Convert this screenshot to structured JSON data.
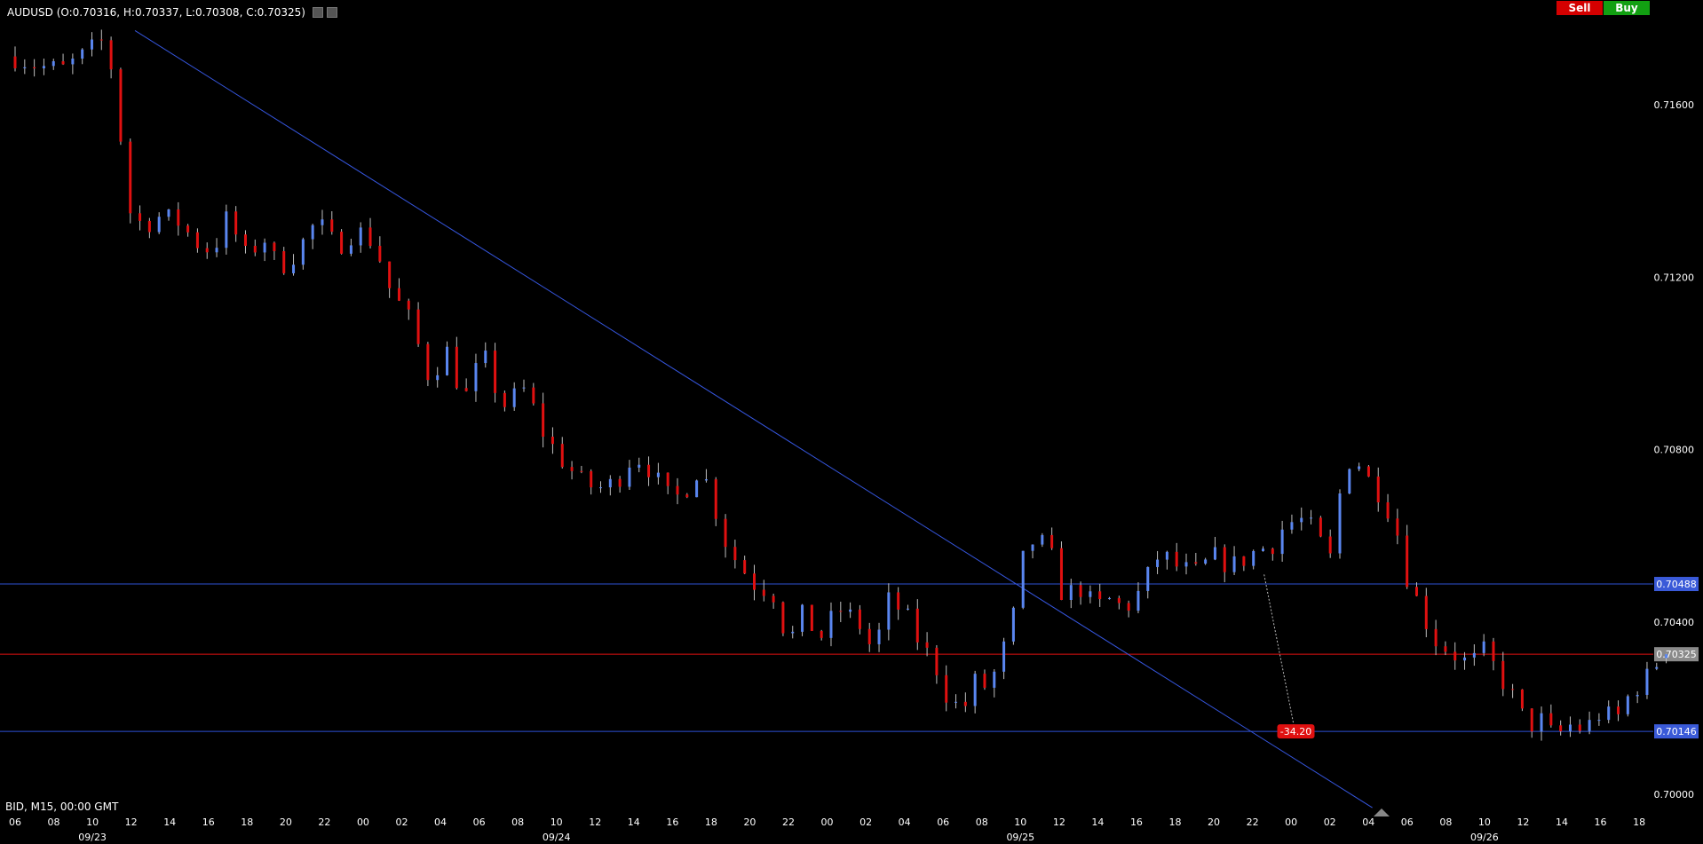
{
  "header": {
    "symbol_ohlc": "AUDUSD (O:0.70316, H:0.70337, L:0.70308, C:0.70325)"
  },
  "buttons": {
    "sell": "Sell",
    "buy": "Buy"
  },
  "footer": {
    "info": "BID, M15, 00:00 GMT"
  },
  "colors": {
    "background": "#000000",
    "up": "#5a86f0",
    "down": "#e01010",
    "hline": "#2e52d6",
    "price": "#e01010",
    "trend": "#3555dc"
  },
  "chart_data": {
    "type": "candlestick",
    "symbol": "AUDUSD",
    "timeframe": "M15",
    "ylim": [
      0.6999,
      0.7176
    ],
    "y_ticks": [
      {
        "value": 0.716,
        "label": "0.71600"
      },
      {
        "value": 0.712,
        "label": "0.71200"
      },
      {
        "value": 0.708,
        "label": "0.70800"
      },
      {
        "value": 0.704,
        "label": "0.70400"
      },
      {
        "value": 0.7,
        "label": "0.70000"
      }
    ],
    "x_ticks": [
      "06",
      "08",
      "10",
      "12",
      "14",
      "16",
      "18",
      "20",
      "22",
      "00",
      "02",
      "04",
      "06",
      "08",
      "10",
      "12",
      "14",
      "16",
      "18",
      "20",
      "22",
      "00",
      "02",
      "04",
      "06",
      "08",
      "10",
      "12",
      "14",
      "16",
      "18",
      "20",
      "22",
      "00",
      "02",
      "04",
      "06",
      "08",
      "10",
      "12",
      "14",
      "16",
      "18"
    ],
    "x_dates": [
      {
        "tick_index": 2,
        "label": "09/23"
      },
      {
        "tick_index": 14,
        "label": "09/24"
      },
      {
        "tick_index": 26,
        "label": "09/25"
      },
      {
        "tick_index": 38,
        "label": "09/26"
      }
    ],
    "horizontal_lines": [
      {
        "price": 0.70488,
        "label": "0.70488",
        "kind": "level"
      },
      {
        "price": 0.70325,
        "label": "0.70325",
        "kind": "current"
      },
      {
        "price": 0.70146,
        "label": "0.70146",
        "kind": "level"
      }
    ],
    "trendline": {
      "from": {
        "tick": 3.1,
        "price": 0.71772
      },
      "to": {
        "tick": 35.1,
        "price": 0.69969
      }
    },
    "annotation": {
      "label": "-34.20",
      "tick": 33.1,
      "price": 0.70146
    },
    "close_path": [
      [
        0.0,
        0.71712
      ],
      [
        0.6,
        0.7169
      ],
      [
        1.2,
        0.7168
      ],
      [
        1.8,
        0.71715
      ],
      [
        2.3,
        0.7175
      ],
      [
        2.6,
        0.7165
      ],
      [
        2.9,
        0.7136
      ],
      [
        3.3,
        0.7132
      ],
      [
        3.7,
        0.7134
      ],
      [
        4.2,
        0.7133
      ],
      [
        4.7,
        0.7128
      ],
      [
        5.1,
        0.7126
      ],
      [
        5.5,
        0.7134
      ],
      [
        6.0,
        0.7124
      ],
      [
        6.4,
        0.713
      ],
      [
        6.8,
        0.7122
      ],
      [
        7.3,
        0.7126
      ],
      [
        7.8,
        0.7133
      ],
      [
        8.3,
        0.7127
      ],
      [
        8.8,
        0.7131
      ],
      [
        9.3,
        0.7128
      ],
      [
        9.7,
        0.7117
      ],
      [
        10.2,
        0.711
      ],
      [
        10.7,
        0.7097
      ],
      [
        11.2,
        0.7103
      ],
      [
        11.6,
        0.7091
      ],
      [
        12.1,
        0.7102
      ],
      [
        12.6,
        0.709
      ],
      [
        13.2,
        0.7094
      ],
      [
        13.7,
        0.7083
      ],
      [
        14.2,
        0.7077
      ],
      [
        14.7,
        0.7072
      ],
      [
        15.1,
        0.7071
      ],
      [
        15.5,
        0.7072
      ],
      [
        16.0,
        0.7079
      ],
      [
        16.5,
        0.7075
      ],
      [
        16.8,
        0.7069
      ],
      [
        17.2,
        0.7069
      ],
      [
        17.7,
        0.7076
      ],
      [
        18.0,
        0.707
      ],
      [
        18.3,
        0.706
      ],
      [
        18.6,
        0.7055
      ],
      [
        19.1,
        0.7049
      ],
      [
        19.6,
        0.7047
      ],
      [
        20.0,
        0.7035
      ],
      [
        20.4,
        0.7042
      ],
      [
        20.8,
        0.7036
      ],
      [
        21.3,
        0.7043
      ],
      [
        21.8,
        0.704
      ],
      [
        22.2,
        0.7033
      ],
      [
        22.6,
        0.7045
      ],
      [
        23.0,
        0.7042
      ],
      [
        23.4,
        0.7035
      ],
      [
        23.8,
        0.703
      ],
      [
        24.1,
        0.7023
      ],
      [
        24.5,
        0.7019
      ],
      [
        24.8,
        0.7026
      ],
      [
        25.1,
        0.7025
      ],
      [
        25.4,
        0.7029
      ],
      [
        25.8,
        0.704
      ],
      [
        26.0,
        0.7053
      ],
      [
        26.4,
        0.706
      ],
      [
        26.8,
        0.7055
      ],
      [
        27.1,
        0.7046
      ],
      [
        27.6,
        0.7048
      ],
      [
        27.9,
        0.7043
      ],
      [
        28.3,
        0.7045
      ],
      [
        28.7,
        0.7043
      ],
      [
        29.1,
        0.7047
      ],
      [
        29.6,
        0.7056
      ],
      [
        30.0,
        0.7053
      ],
      [
        30.5,
        0.7051
      ],
      [
        31.0,
        0.7055
      ],
      [
        31.5,
        0.7053
      ],
      [
        32.0,
        0.7056
      ],
      [
        32.5,
        0.7058
      ],
      [
        32.8,
        0.7062
      ],
      [
        33.2,
        0.7064
      ],
      [
        33.6,
        0.7061
      ],
      [
        34.0,
        0.7054
      ],
      [
        34.3,
        0.7072
      ],
      [
        34.6,
        0.708
      ],
      [
        34.9,
        0.7074
      ],
      [
        35.3,
        0.707
      ],
      [
        35.7,
        0.7063
      ],
      [
        35.9,
        0.7053
      ],
      [
        36.3,
        0.7044
      ],
      [
        36.7,
        0.7036
      ],
      [
        37.0,
        0.7034
      ],
      [
        37.3,
        0.7032
      ],
      [
        37.6,
        0.703
      ],
      [
        38.0,
        0.7033
      ],
      [
        38.5,
        0.7026
      ],
      [
        38.9,
        0.702
      ],
      [
        39.1,
        0.7015
      ],
      [
        39.4,
        0.7018
      ],
      [
        39.8,
        0.7013
      ],
      [
        40.2,
        0.7016
      ],
      [
        40.6,
        0.7015
      ],
      [
        41.0,
        0.7019
      ],
      [
        41.4,
        0.7017
      ],
      [
        41.8,
        0.7024
      ],
      [
        42.2,
        0.7027
      ],
      [
        42.5,
        0.7031
      ],
      [
        42.7,
        0.70325
      ]
    ]
  }
}
